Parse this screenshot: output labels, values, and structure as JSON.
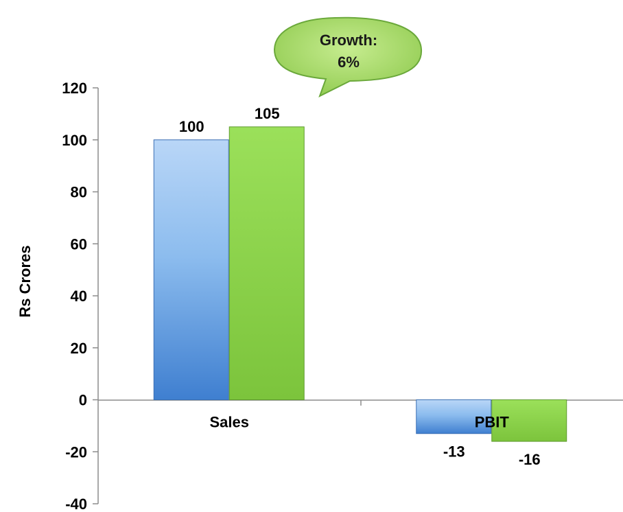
{
  "chart_data": {
    "type": "bar",
    "categories": [
      "Sales",
      "PBIT"
    ],
    "series": [
      {
        "values": [
          100,
          -13
        ],
        "color": "#5b9bd5"
      },
      {
        "values": [
          105,
          -16
        ],
        "color": "#8fd14f"
      }
    ],
    "ylabel": "Rs Crores",
    "xlabel": "",
    "ylim": [
      -40,
      120
    ],
    "y_ticks": [
      -40,
      -20,
      0,
      20,
      40,
      60,
      80,
      100,
      120
    ],
    "grid": false,
    "legend": "none",
    "annotations": [
      {
        "text_line1": "Growth:",
        "text_line2": "6%",
        "shape": "speech-bubble",
        "color": "#92d050"
      }
    ]
  }
}
